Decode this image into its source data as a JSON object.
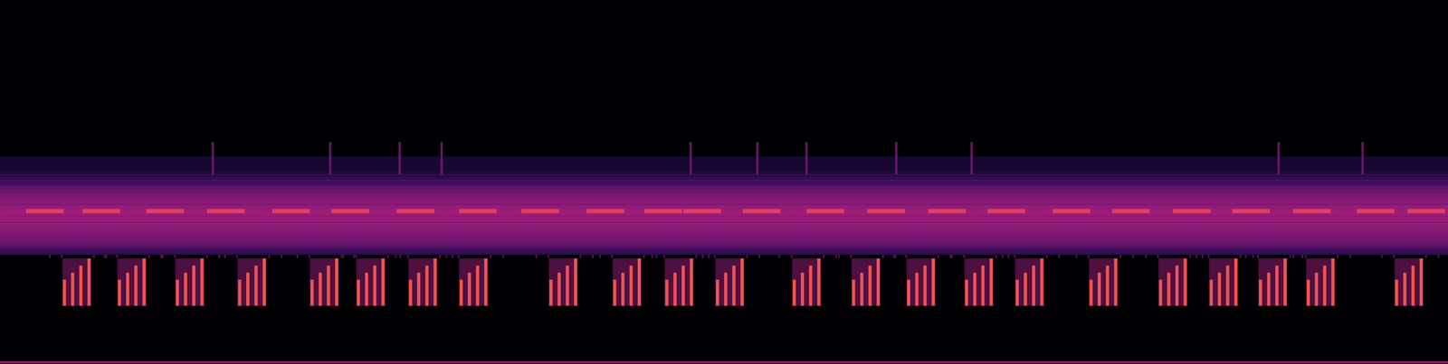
{
  "chart_data": {
    "type": "spectrogram",
    "tick_labels": false,
    "xlim": [
      0,
      100
    ],
    "ylim": [
      0,
      100
    ],
    "colorbar": {
      "range": [
        0,
        1
      ]
    },
    "band": {
      "low": 30,
      "high": 53,
      "level": 0.55
    },
    "dashes": {
      "x": [
        3.1,
        7.0,
        11.4,
        15.6,
        20.1,
        24.2,
        28.7,
        33.0,
        37.3,
        41.8,
        45.8,
        48.5,
        52.6,
        57.0,
        61.2,
        65.4,
        69.5,
        74.0,
        78.1,
        82.3,
        86.4,
        90.6,
        95.0,
        98.5
      ],
      "width": 2.6,
      "freq": 42,
      "level": 0.78
    },
    "pulses": {
      "x": [
        5.3,
        9.1,
        13.1,
        17.4,
        22.4,
        25.6,
        29.2,
        32.7,
        38.9,
        43.3,
        46.9,
        50.4,
        55.7,
        59.8,
        63.6,
        67.6,
        71.1,
        76.2,
        81.0,
        84.5,
        87.9,
        91.2,
        97.3
      ],
      "width": 1.7,
      "low": 16,
      "high": 29,
      "level": 0.85
    },
    "clicks": {
      "x": [
        14.7,
        22.8,
        27.6,
        30.5,
        47.7,
        52.3,
        55.7,
        61.9,
        67.1,
        88.3,
        94.1
      ],
      "low": 52,
      "high": 61,
      "level": 0.42
    },
    "baseline": {
      "freq": 0.5,
      "level": 0.55
    }
  }
}
